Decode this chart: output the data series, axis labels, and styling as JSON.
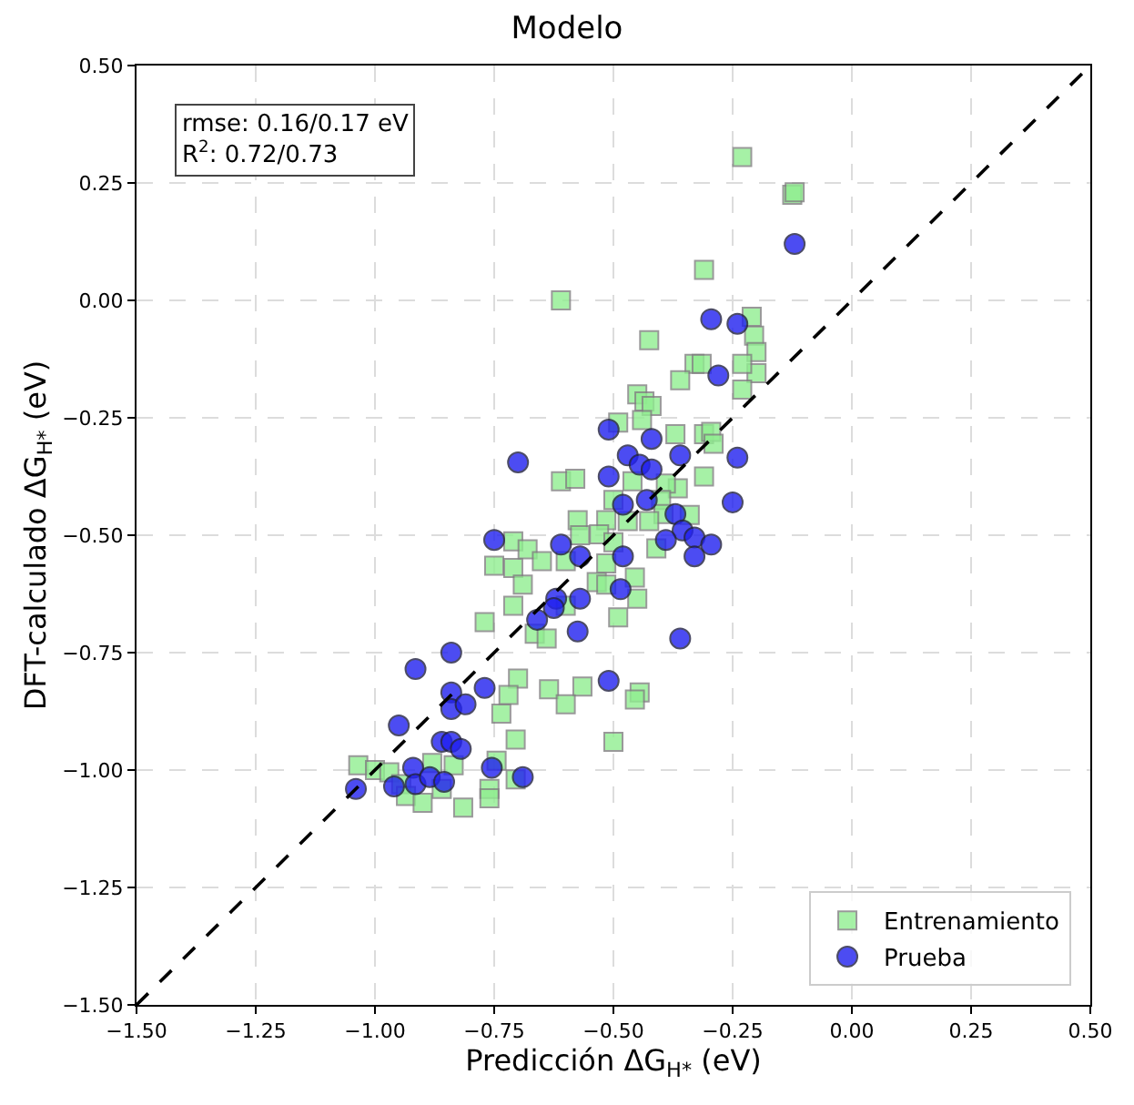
{
  "chart_data": {
    "type": "scatter",
    "title": "Modelo",
    "xlabel": "Predicción ΔG$_{H*}$ (eV)",
    "ylabel": "DFT-calculado ΔG$_{H*}$ (eV)",
    "annotations": [
      "rmse: 0.16/0.17 eV",
      "R$^{2}$: 0.72/0.73"
    ],
    "xlim": [
      -1.5,
      0.5
    ],
    "ylim": [
      -1.5,
      0.5
    ],
    "xticks": [
      {
        "value": -1.5,
        "label": "−1.50"
      },
      {
        "value": -1.25,
        "label": "−1.25"
      },
      {
        "value": -1,
        "label": "−1.00"
      },
      {
        "value": -0.75,
        "label": "−0.75"
      },
      {
        "value": -0.5,
        "label": "−0.50"
      },
      {
        "value": -0.25,
        "label": "−0.25"
      },
      {
        "value": 0,
        "label": "0.00"
      },
      {
        "value": 0.25,
        "label": "0.25"
      },
      {
        "value": 0.5,
        "label": "0.50"
      }
    ],
    "yticks": [
      {
        "value": -1.5,
        "label": "−1.50"
      },
      {
        "value": -1.25,
        "label": "−1.25"
      },
      {
        "value": -1,
        "label": "−1.00"
      },
      {
        "value": -0.75,
        "label": "−0.75"
      },
      {
        "value": -0.5,
        "label": "−0.50"
      },
      {
        "value": -0.25,
        "label": "−0.25"
      },
      {
        "value": 0,
        "label": "0.00"
      },
      {
        "value": 0.25,
        "label": "0.25"
      },
      {
        "value": 0.5,
        "label": "0.50"
      }
    ],
    "grid": true,
    "legend": "bottom right",
    "series": [
      {
        "name": "Entrenamiento",
        "color": "#90ee90",
        "marker": "square",
        "x": [
          -0.23,
          -0.125,
          -0.12,
          -0.31,
          -0.61,
          -0.21,
          -0.205,
          -0.2,
          -0.2,
          -0.23,
          -0.23,
          -0.33,
          -0.315,
          -0.425,
          -0.36,
          -0.45,
          -0.435,
          -0.42,
          -0.44,
          -0.49,
          -0.37,
          -0.31,
          -0.295,
          -0.29,
          -0.31,
          -0.61,
          -0.58,
          -0.365,
          -0.46,
          -0.39,
          -0.5,
          -0.4,
          -0.395,
          -0.34,
          -0.425,
          -0.47,
          -0.515,
          -0.575,
          -0.57,
          -0.53,
          -0.5,
          -0.41,
          -0.71,
          -0.68,
          -0.75,
          -0.71,
          -0.65,
          -0.69,
          -0.6,
          -0.515,
          -0.535,
          -0.515,
          -0.455,
          -0.45,
          -0.71,
          -0.6,
          -0.49,
          -0.77,
          -0.665,
          -0.64,
          -0.7,
          -0.72,
          -0.635,
          -0.565,
          -0.6,
          -0.735,
          -0.445,
          -0.455,
          -0.5,
          -0.705,
          -1.035,
          -1.0,
          -0.97,
          -0.945,
          -0.935,
          -0.9,
          -0.88,
          -0.835,
          -0.86,
          -0.815,
          -0.76,
          -0.76,
          -0.705,
          -0.745
        ],
        "values": [
          0.305,
          0.225,
          0.23,
          0.065,
          0.0,
          -0.035,
          -0.075,
          -0.11,
          -0.155,
          -0.135,
          -0.19,
          -0.135,
          -0.135,
          -0.085,
          -0.17,
          -0.2,
          -0.215,
          -0.225,
          -0.255,
          -0.26,
          -0.285,
          -0.285,
          -0.28,
          -0.305,
          -0.375,
          -0.385,
          -0.38,
          -0.4,
          -0.385,
          -0.39,
          -0.425,
          -0.425,
          -0.455,
          -0.457,
          -0.47,
          -0.47,
          -0.468,
          -0.468,
          -0.5,
          -0.498,
          -0.515,
          -0.528,
          -0.513,
          -0.53,
          -0.565,
          -0.57,
          -0.555,
          -0.605,
          -0.555,
          -0.56,
          -0.6,
          -0.605,
          -0.59,
          -0.635,
          -0.65,
          -0.65,
          -0.675,
          -0.685,
          -0.71,
          -0.72,
          -0.805,
          -0.84,
          -0.828,
          -0.822,
          -0.86,
          -0.88,
          -0.835,
          -0.85,
          -0.94,
          -0.935,
          -0.99,
          -1.0,
          -1.005,
          -1.03,
          -1.055,
          -1.07,
          -0.985,
          -0.99,
          -1.04,
          -1.08,
          -1.04,
          -1.06,
          -1.02,
          -0.98
        ]
      },
      {
        "name": "Prueba",
        "color": "#2020f0",
        "marker": "circle",
        "x": [
          -0.12,
          -0.295,
          -0.24,
          -0.28,
          -0.51,
          -0.7,
          -0.47,
          -0.42,
          -0.445,
          -0.42,
          -0.36,
          -0.24,
          -0.51,
          -0.48,
          -0.43,
          -0.25,
          -0.37,
          -0.355,
          -0.39,
          -0.33,
          -0.295,
          -0.33,
          -0.75,
          -0.61,
          -0.57,
          -0.48,
          -0.485,
          -0.57,
          -0.62,
          -0.625,
          -0.66,
          -0.575,
          -0.36,
          -0.51,
          -0.84,
          -0.915,
          -0.77,
          -0.84,
          -0.84,
          -0.81,
          -0.95,
          -0.86,
          -0.84,
          -0.82,
          -0.755,
          -0.92,
          -0.69,
          -1.04,
          -0.96,
          -0.915,
          -0.885,
          -0.865,
          -0.855
        ],
        "values": [
          0.12,
          -0.04,
          -0.05,
          -0.16,
          -0.275,
          -0.345,
          -0.33,
          -0.295,
          -0.35,
          -0.36,
          -0.33,
          -0.335,
          -0.375,
          -0.435,
          -0.425,
          -0.43,
          -0.455,
          -0.49,
          -0.51,
          -0.505,
          -0.52,
          -0.545,
          -0.51,
          -0.52,
          -0.545,
          -0.545,
          -0.615,
          -0.635,
          -0.635,
          -0.655,
          -0.68,
          -0.705,
          -0.72,
          -0.81,
          -0.75,
          -0.785,
          -0.825,
          -0.835,
          -0.87,
          -0.86,
          -0.905,
          -0.94,
          -0.94,
          -0.955,
          -0.995,
          -0.995,
          -1.015,
          -1.04,
          -1.035,
          -1.03,
          -1.015,
          null,
          -1.025
        ]
      },
      {
        "type": "line",
        "color": "#000000",
        "line_style": "dashed",
        "x": [
          -1.5,
          0.5
        ],
        "values": [
          -1.5,
          0.5
        ]
      }
    ]
  }
}
